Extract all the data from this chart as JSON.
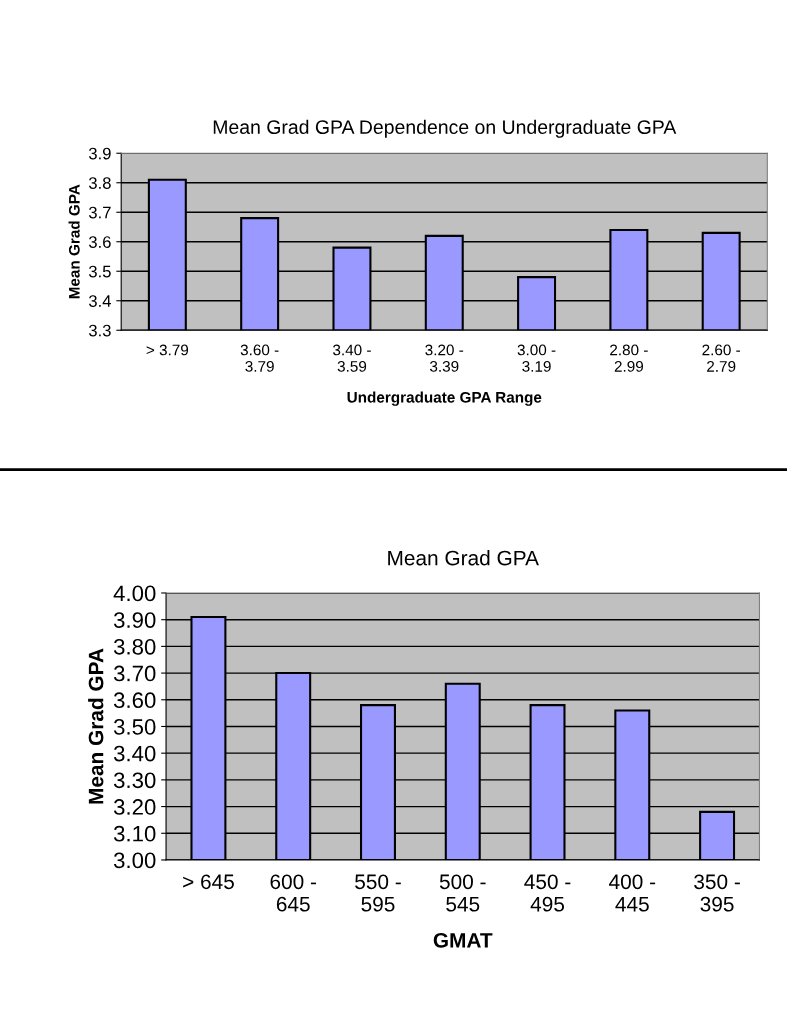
{
  "chart_data": [
    {
      "type": "bar",
      "title": "Mean Grad GPA Dependence on Undergraduate GPA",
      "xlabel": "Undergraduate GPA Range",
      "ylabel": "Mean Grad GPA",
      "categories": [
        "> 3.79",
        "3.60 -\n3.79",
        "3.40 -\n3.59",
        "3.20 -\n3.39",
        "3.00 -\n3.19",
        "2.80 -\n2.99",
        "2.60 -\n2.79"
      ],
      "values": [
        3.81,
        3.68,
        3.58,
        3.62,
        3.48,
        3.64,
        3.63
      ],
      "color": "#9999ff",
      "ylim": [
        3.3,
        3.9
      ],
      "yticks": [
        3.3,
        3.4,
        3.5,
        3.6,
        3.7,
        3.8,
        3.9
      ],
      "grid": "y",
      "legend": false
    },
    {
      "type": "bar",
      "title": "Mean Grad GPA",
      "xlabel": "GMAT",
      "ylabel": "Mean Grad GPA",
      "categories": [
        "> 645",
        "600 -\n645",
        "550 -\n595",
        "500 -\n545",
        "450 -\n495",
        "400 -\n445",
        "350 -\n395"
      ],
      "values": [
        3.91,
        3.7,
        3.58,
        3.66,
        3.58,
        3.56,
        3.18
      ],
      "color": "#9999ff",
      "ylim": [
        3.0,
        4.0
      ],
      "yticks": [
        {
          "value": 3.0,
          "label": "3.00"
        },
        {
          "value": 3.1,
          "label": "3.10"
        },
        {
          "value": 3.2,
          "label": "3.20"
        },
        {
          "value": 3.3,
          "label": "3.30"
        },
        {
          "value": 3.4,
          "label": "3.40"
        },
        {
          "value": 3.5,
          "label": "3.50"
        },
        {
          "value": 3.6,
          "label": "3.60"
        },
        {
          "value": 3.7,
          "label": "3.70"
        },
        {
          "value": 3.8,
          "label": "3.80"
        },
        {
          "value": 3.9,
          "label": "3.90"
        },
        {
          "value": 4.0,
          "label": "4.00"
        }
      ],
      "grid": "y",
      "legend": false
    }
  ]
}
